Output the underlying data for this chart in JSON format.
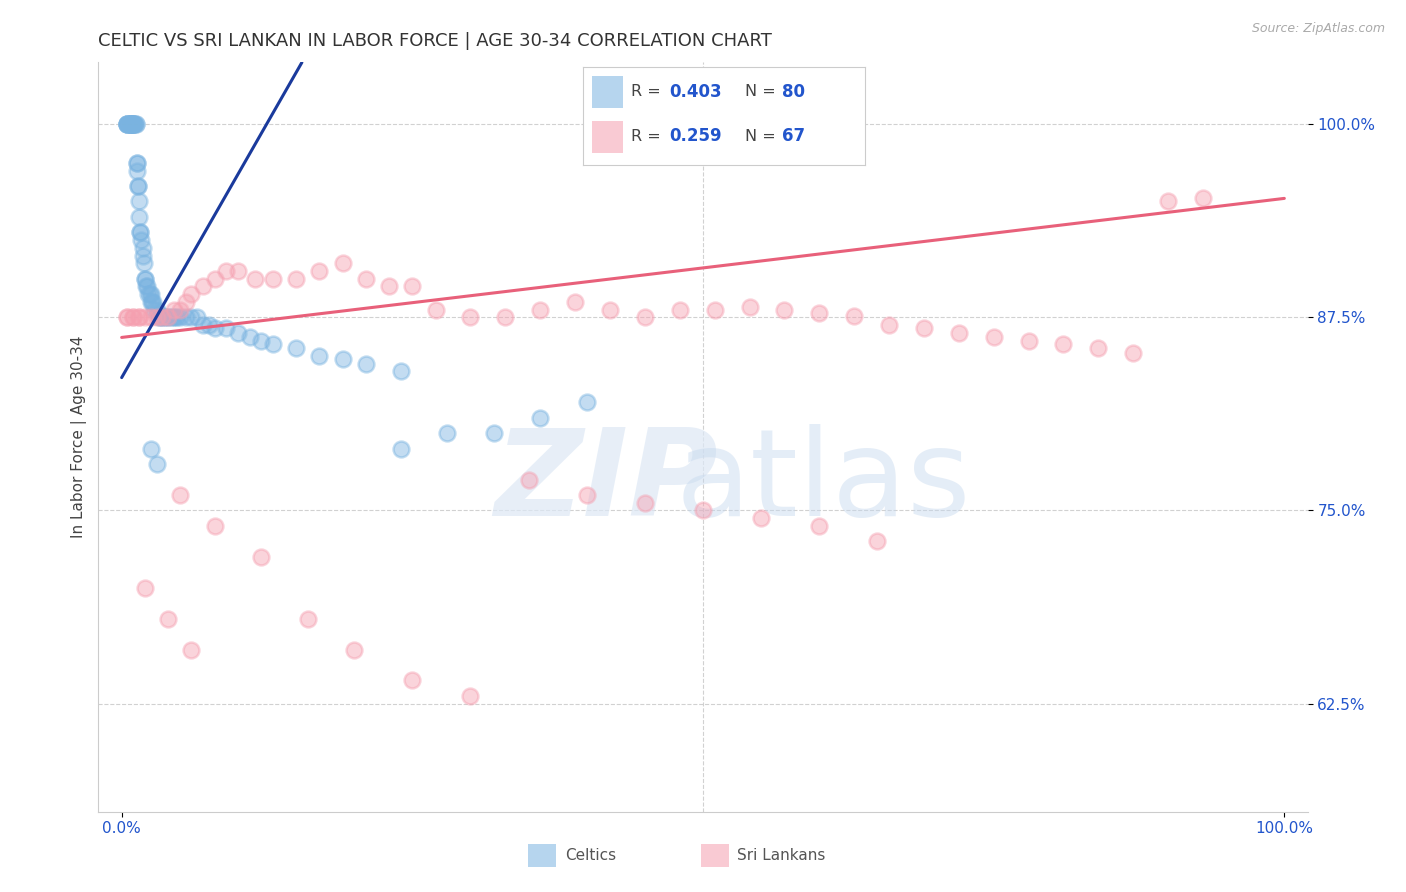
{
  "title": "CELTIC VS SRI LANKAN IN LABOR FORCE | AGE 30-34 CORRELATION CHART",
  "source_text": "Source: ZipAtlas.com",
  "ylabel": "In Labor Force | Age 30-34",
  "xlim": [
    -0.02,
    1.02
  ],
  "ylim": [
    0.555,
    1.04
  ],
  "yticks": [
    0.625,
    0.75,
    0.875,
    1.0
  ],
  "ytick_labels": [
    "62.5%",
    "75.0%",
    "87.5%",
    "100.0%"
  ],
  "xticks": [
    0.0,
    1.0
  ],
  "xtick_labels": [
    "0.0%",
    "100.0%"
  ],
  "celtics_color": "#7ab3e0",
  "srilankans_color": "#f5a0b0",
  "blue_line_color": "#1a3a9c",
  "pink_line_color": "#e8607a",
  "title_fontsize": 13,
  "axis_label_fontsize": 11,
  "tick_fontsize": 11,
  "celtic_x": [
    0.005,
    0.005,
    0.005,
    0.005,
    0.005,
    0.007,
    0.007,
    0.007,
    0.008,
    0.008,
    0.008,
    0.009,
    0.009,
    0.01,
    0.01,
    0.01,
    0.011,
    0.011,
    0.012,
    0.012,
    0.013,
    0.013,
    0.013,
    0.014,
    0.014,
    0.015,
    0.015,
    0.016,
    0.016,
    0.017,
    0.018,
    0.018,
    0.019,
    0.02,
    0.02,
    0.021,
    0.022,
    0.023,
    0.024,
    0.025,
    0.025,
    0.026,
    0.027,
    0.028,
    0.03,
    0.031,
    0.032,
    0.033,
    0.035,
    0.036,
    0.038,
    0.04,
    0.042,
    0.044,
    0.046,
    0.048,
    0.05,
    0.055,
    0.06,
    0.065,
    0.07,
    0.075,
    0.08,
    0.09,
    0.1,
    0.11,
    0.12,
    0.13,
    0.15,
    0.17,
    0.19,
    0.21,
    0.24,
    0.025,
    0.03,
    0.24,
    0.28,
    0.32,
    0.36,
    0.4
  ],
  "celtic_y": [
    1.0,
    1.0,
    1.0,
    1.0,
    1.0,
    1.0,
    1.0,
    1.0,
    1.0,
    1.0,
    1.0,
    1.0,
    1.0,
    1.0,
    1.0,
    1.0,
    1.0,
    1.0,
    1.0,
    1.0,
    0.975,
    0.975,
    0.97,
    0.96,
    0.96,
    0.95,
    0.94,
    0.93,
    0.93,
    0.925,
    0.92,
    0.915,
    0.91,
    0.9,
    0.9,
    0.895,
    0.895,
    0.89,
    0.89,
    0.89,
    0.885,
    0.885,
    0.885,
    0.88,
    0.88,
    0.878,
    0.875,
    0.875,
    0.875,
    0.875,
    0.875,
    0.875,
    0.875,
    0.875,
    0.875,
    0.875,
    0.875,
    0.875,
    0.875,
    0.875,
    0.87,
    0.87,
    0.868,
    0.868,
    0.865,
    0.862,
    0.86,
    0.858,
    0.855,
    0.85,
    0.848,
    0.845,
    0.84,
    0.79,
    0.78,
    0.79,
    0.8,
    0.8,
    0.81,
    0.82
  ],
  "sl_x": [
    0.005,
    0.005,
    0.01,
    0.01,
    0.015,
    0.015,
    0.02,
    0.025,
    0.03,
    0.035,
    0.04,
    0.045,
    0.05,
    0.055,
    0.06,
    0.07,
    0.08,
    0.09,
    0.1,
    0.115,
    0.13,
    0.15,
    0.17,
    0.19,
    0.21,
    0.23,
    0.25,
    0.27,
    0.3,
    0.33,
    0.36,
    0.39,
    0.42,
    0.45,
    0.48,
    0.51,
    0.54,
    0.57,
    0.6,
    0.63,
    0.66,
    0.69,
    0.72,
    0.75,
    0.78,
    0.81,
    0.84,
    0.87,
    0.9,
    0.93,
    0.05,
    0.08,
    0.12,
    0.16,
    0.2,
    0.25,
    0.3,
    0.02,
    0.04,
    0.06,
    0.35,
    0.4,
    0.45,
    0.5,
    0.55,
    0.6,
    0.65
  ],
  "sl_y": [
    0.875,
    0.875,
    0.875,
    0.875,
    0.875,
    0.875,
    0.875,
    0.875,
    0.875,
    0.875,
    0.875,
    0.88,
    0.88,
    0.885,
    0.89,
    0.895,
    0.9,
    0.905,
    0.905,
    0.9,
    0.9,
    0.9,
    0.905,
    0.91,
    0.9,
    0.895,
    0.895,
    0.88,
    0.875,
    0.875,
    0.88,
    0.885,
    0.88,
    0.875,
    0.88,
    0.88,
    0.882,
    0.88,
    0.878,
    0.876,
    0.87,
    0.868,
    0.865,
    0.862,
    0.86,
    0.858,
    0.855,
    0.852,
    0.95,
    0.952,
    0.76,
    0.74,
    0.72,
    0.68,
    0.66,
    0.64,
    0.63,
    0.7,
    0.68,
    0.66,
    0.77,
    0.76,
    0.755,
    0.75,
    0.745,
    0.74,
    0.73
  ],
  "blue_line_x0": 0.0,
  "blue_line_y0": 0.836,
  "blue_line_x1": 0.155,
  "blue_line_y1": 1.04,
  "pink_line_x0": 0.0,
  "pink_line_y0": 0.862,
  "pink_line_x1": 1.0,
  "pink_line_y1": 0.952
}
